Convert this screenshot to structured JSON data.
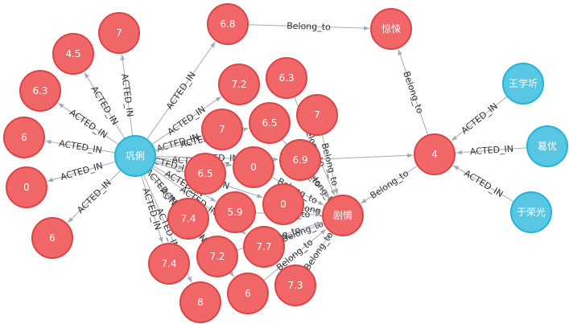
{
  "colors": {
    "movie_fill": "#f16667",
    "movie_stroke": "#d94647",
    "person_fill": "#57c7e3",
    "person_stroke": "#23b3d7",
    "edge": "#a5abb6",
    "edge_text": "#333333"
  },
  "nodes": [
    {
      "id": "gongli",
      "label": "巩俐",
      "kind": "person"
    },
    {
      "id": "wangxuexin",
      "label": "王学圻",
      "kind": "person"
    },
    {
      "id": "geyou",
      "label": "葛优",
      "kind": "person"
    },
    {
      "id": "yurongguang",
      "label": "于荣光",
      "kind": "person"
    },
    {
      "id": "jingsong",
      "label": "惊悚",
      "kind": "genre"
    },
    {
      "id": "juqing",
      "label": "剧情",
      "kind": "genre"
    },
    {
      "id": "m4",
      "label": "4",
      "kind": "movie"
    },
    {
      "id": "m68",
      "label": "6.8",
      "kind": "movie"
    },
    {
      "id": "m7a",
      "label": "7",
      "kind": "movie"
    },
    {
      "id": "m45",
      "label": "4.5",
      "kind": "movie"
    },
    {
      "id": "m63a",
      "label": "6.3",
      "kind": "movie"
    },
    {
      "id": "m6a",
      "label": "6",
      "kind": "movie"
    },
    {
      "id": "m0a",
      "label": "0",
      "kind": "movie"
    },
    {
      "id": "m6b",
      "label": "6",
      "kind": "movie"
    },
    {
      "id": "m72a",
      "label": "7.2",
      "kind": "movie"
    },
    {
      "id": "m63b",
      "label": "6.3",
      "kind": "movie"
    },
    {
      "id": "m7b",
      "label": "7",
      "kind": "movie"
    },
    {
      "id": "m65a",
      "label": "6.5",
      "kind": "movie"
    },
    {
      "id": "m7c",
      "label": "7",
      "kind": "movie"
    },
    {
      "id": "m0b",
      "label": "0",
      "kind": "movie"
    },
    {
      "id": "m69",
      "label": "6.9",
      "kind": "movie"
    },
    {
      "id": "m65b",
      "label": "6.5",
      "kind": "movie"
    },
    {
      "id": "m0c",
      "label": "0",
      "kind": "movie"
    },
    {
      "id": "m59",
      "label": "5.9",
      "kind": "movie"
    },
    {
      "id": "m74a",
      "label": "7.4",
      "kind": "movie"
    },
    {
      "id": "m77",
      "label": "7.7",
      "kind": "movie"
    },
    {
      "id": "m72b",
      "label": "7.2",
      "kind": "movie"
    },
    {
      "id": "m74b",
      "label": "7.4",
      "kind": "movie"
    },
    {
      "id": "m73",
      "label": "7.3",
      "kind": "movie"
    },
    {
      "id": "m6c",
      "label": "6",
      "kind": "movie"
    },
    {
      "id": "m8",
      "label": "8",
      "kind": "movie"
    }
  ],
  "edges": [
    {
      "from": "gongli",
      "to": "m7a",
      "label": "ACTED_IN"
    },
    {
      "from": "gongli",
      "to": "m45",
      "label": "ACTED_IN"
    },
    {
      "from": "gongli",
      "to": "m63a",
      "label": "ACTED_IN"
    },
    {
      "from": "gongli",
      "to": "m6a",
      "label": "ACTED_IN"
    },
    {
      "from": "gongli",
      "to": "m0a",
      "label": "ACTED_IN"
    },
    {
      "from": "gongli",
      "to": "m6b",
      "label": "ACTED_IN"
    },
    {
      "from": "gongli",
      "to": "m68",
      "label": "ACTED_IN"
    },
    {
      "from": "gongli",
      "to": "m72a",
      "label": "ACTED_IN"
    },
    {
      "from": "gongli",
      "to": "m7b",
      "label": "ACTED_IN"
    },
    {
      "from": "gongli",
      "to": "m65a",
      "label": "ACTED_IN"
    },
    {
      "from": "gongli",
      "to": "m0b",
      "label": "ACTED_IN"
    },
    {
      "from": "gongli",
      "to": "m69",
      "label": "ACTED_IN"
    },
    {
      "from": "gongli",
      "to": "m65b",
      "label": "ACTED_IN"
    },
    {
      "from": "gongli",
      "to": "m0c",
      "label": "ACTED_IN"
    },
    {
      "from": "gongli",
      "to": "m59",
      "label": "ACTED_IN"
    },
    {
      "from": "gongli",
      "to": "m74a",
      "label": "ACTED_IN"
    },
    {
      "from": "gongli",
      "to": "m74b",
      "label": "ACTED_IN"
    },
    {
      "from": "gongli",
      "to": "m72b",
      "label": "ACTED_IN"
    },
    {
      "from": "gongli",
      "to": "m8",
      "label": "ACTED_IN"
    },
    {
      "from": "gongli",
      "to": "m77",
      "label": "ACTED_IN"
    },
    {
      "from": "gongli",
      "to": "m6c",
      "label": "ACTED_IN"
    },
    {
      "from": "m68",
      "to": "jingsong",
      "label": "Belong_to"
    },
    {
      "from": "m4",
      "to": "jingsong",
      "label": "Belong_to"
    },
    {
      "from": "m4",
      "to": "juqing",
      "label": "Belong_to"
    },
    {
      "from": "wangxuexin",
      "to": "m4",
      "label": "ACTED_IN"
    },
    {
      "from": "geyou",
      "to": "m4",
      "label": "ACTED_IN"
    },
    {
      "from": "yurongguang",
      "to": "m4",
      "label": "ACTED_IN"
    },
    {
      "from": "m7c",
      "to": "juqing",
      "label": "Belong_to"
    },
    {
      "from": "m63b",
      "to": "juqing",
      "label": "Belong_to"
    },
    {
      "from": "m65a",
      "to": "juqing",
      "label": "Belong_to"
    },
    {
      "from": "m69",
      "to": "juqing",
      "label": "Belong_to"
    },
    {
      "from": "m0b",
      "to": "juqing",
      "label": "Belong_to"
    },
    {
      "from": "m0c",
      "to": "juqing",
      "label": "Belong_to"
    },
    {
      "from": "m59",
      "to": "juqing",
      "label": "Belong_to"
    },
    {
      "from": "m77",
      "to": "juqing",
      "label": "Belong_to"
    },
    {
      "from": "m72b",
      "to": "juqing",
      "label": "Belong_to"
    },
    {
      "from": "m6c",
      "to": "juqing",
      "label": "Belong_to"
    },
    {
      "from": "m73",
      "to": "juqing",
      "label": "Belong_to"
    },
    {
      "from": "m69",
      "to": "m4",
      "label": ""
    }
  ]
}
